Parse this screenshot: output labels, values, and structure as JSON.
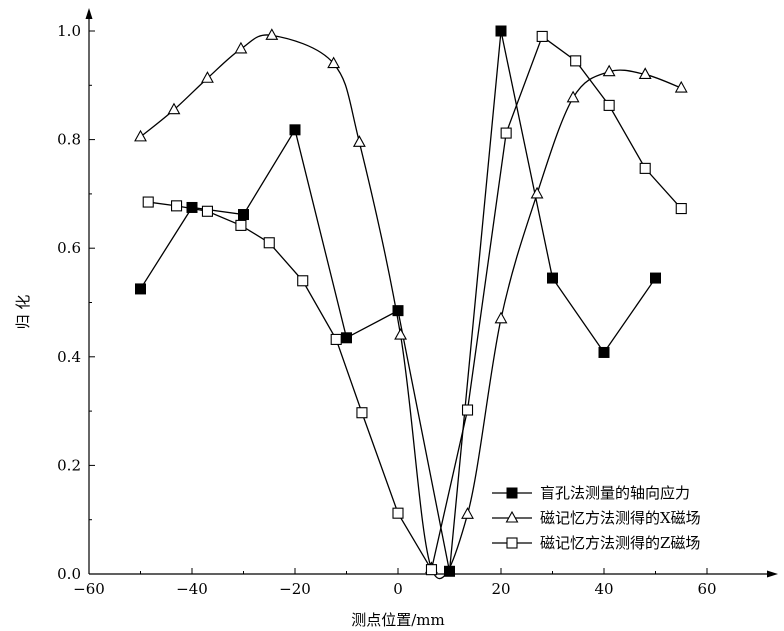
{
  "chart_data": {
    "type": "line",
    "title": "",
    "xlabel": "测点位置/mm",
    "ylabel": "归 化",
    "xlim": [
      -60,
      70
    ],
    "ylim": [
      0,
      1.0
    ],
    "xticks": [
      -60,
      -40,
      -20,
      0,
      20,
      40,
      60
    ],
    "xtick_labels": [
      "−60",
      "−40",
      "−20",
      "0",
      "20",
      "40",
      "60"
    ],
    "yticks": [
      0.0,
      0.2,
      0.4,
      0.6,
      0.8,
      1.0
    ],
    "ytick_labels": [
      "0.0",
      "0.2",
      "0.4",
      "0.6",
      "0.8",
      "1.0"
    ],
    "grid": false,
    "legend_position": "bottom-right",
    "series": [
      {
        "name": "盲孔法测量的轴向应力",
        "marker": "filled-square",
        "smooth": false,
        "color": "#000000",
        "x": [
          -50,
          -40,
          -30,
          -20,
          -10,
          0,
          10,
          20,
          30,
          40,
          50
        ],
        "y": [
          0.525,
          0.675,
          0.662,
          0.818,
          0.435,
          0.485,
          0.005,
          1.0,
          0.545,
          0.408,
          0.545
        ]
      },
      {
        "name": "磁记忆方法测得的X磁场",
        "marker": "open-triangle",
        "smooth": true,
        "color": "#000000",
        "x": [
          -50,
          -43.5,
          -37,
          -30.5,
          -24.5,
          -12.5,
          -7.5,
          0.5,
          6.5,
          13.5,
          20,
          27,
          34,
          41,
          48,
          55
        ],
        "y": [
          0.805,
          0.855,
          0.913,
          0.967,
          0.992,
          0.94,
          0.795,
          0.44,
          0.01,
          0.11,
          0.47,
          0.7,
          0.877,
          0.925,
          0.92,
          0.895
        ]
      },
      {
        "name": "磁记忆方法测得的Z磁场",
        "marker": "open-square",
        "smooth": false,
        "color": "#000000",
        "x": [
          -48.5,
          -43,
          -37,
          -30.5,
          -25,
          -18.5,
          -12,
          -7,
          0,
          6.5,
          13.5,
          21,
          28,
          34.5,
          41,
          48,
          55
        ],
        "y": [
          0.685,
          0.678,
          0.668,
          0.642,
          0.61,
          0.54,
          0.432,
          0.297,
          0.112,
          0.008,
          0.302,
          0.812,
          0.99,
          0.945,
          0.863,
          0.747,
          0.673
        ]
      }
    ]
  }
}
